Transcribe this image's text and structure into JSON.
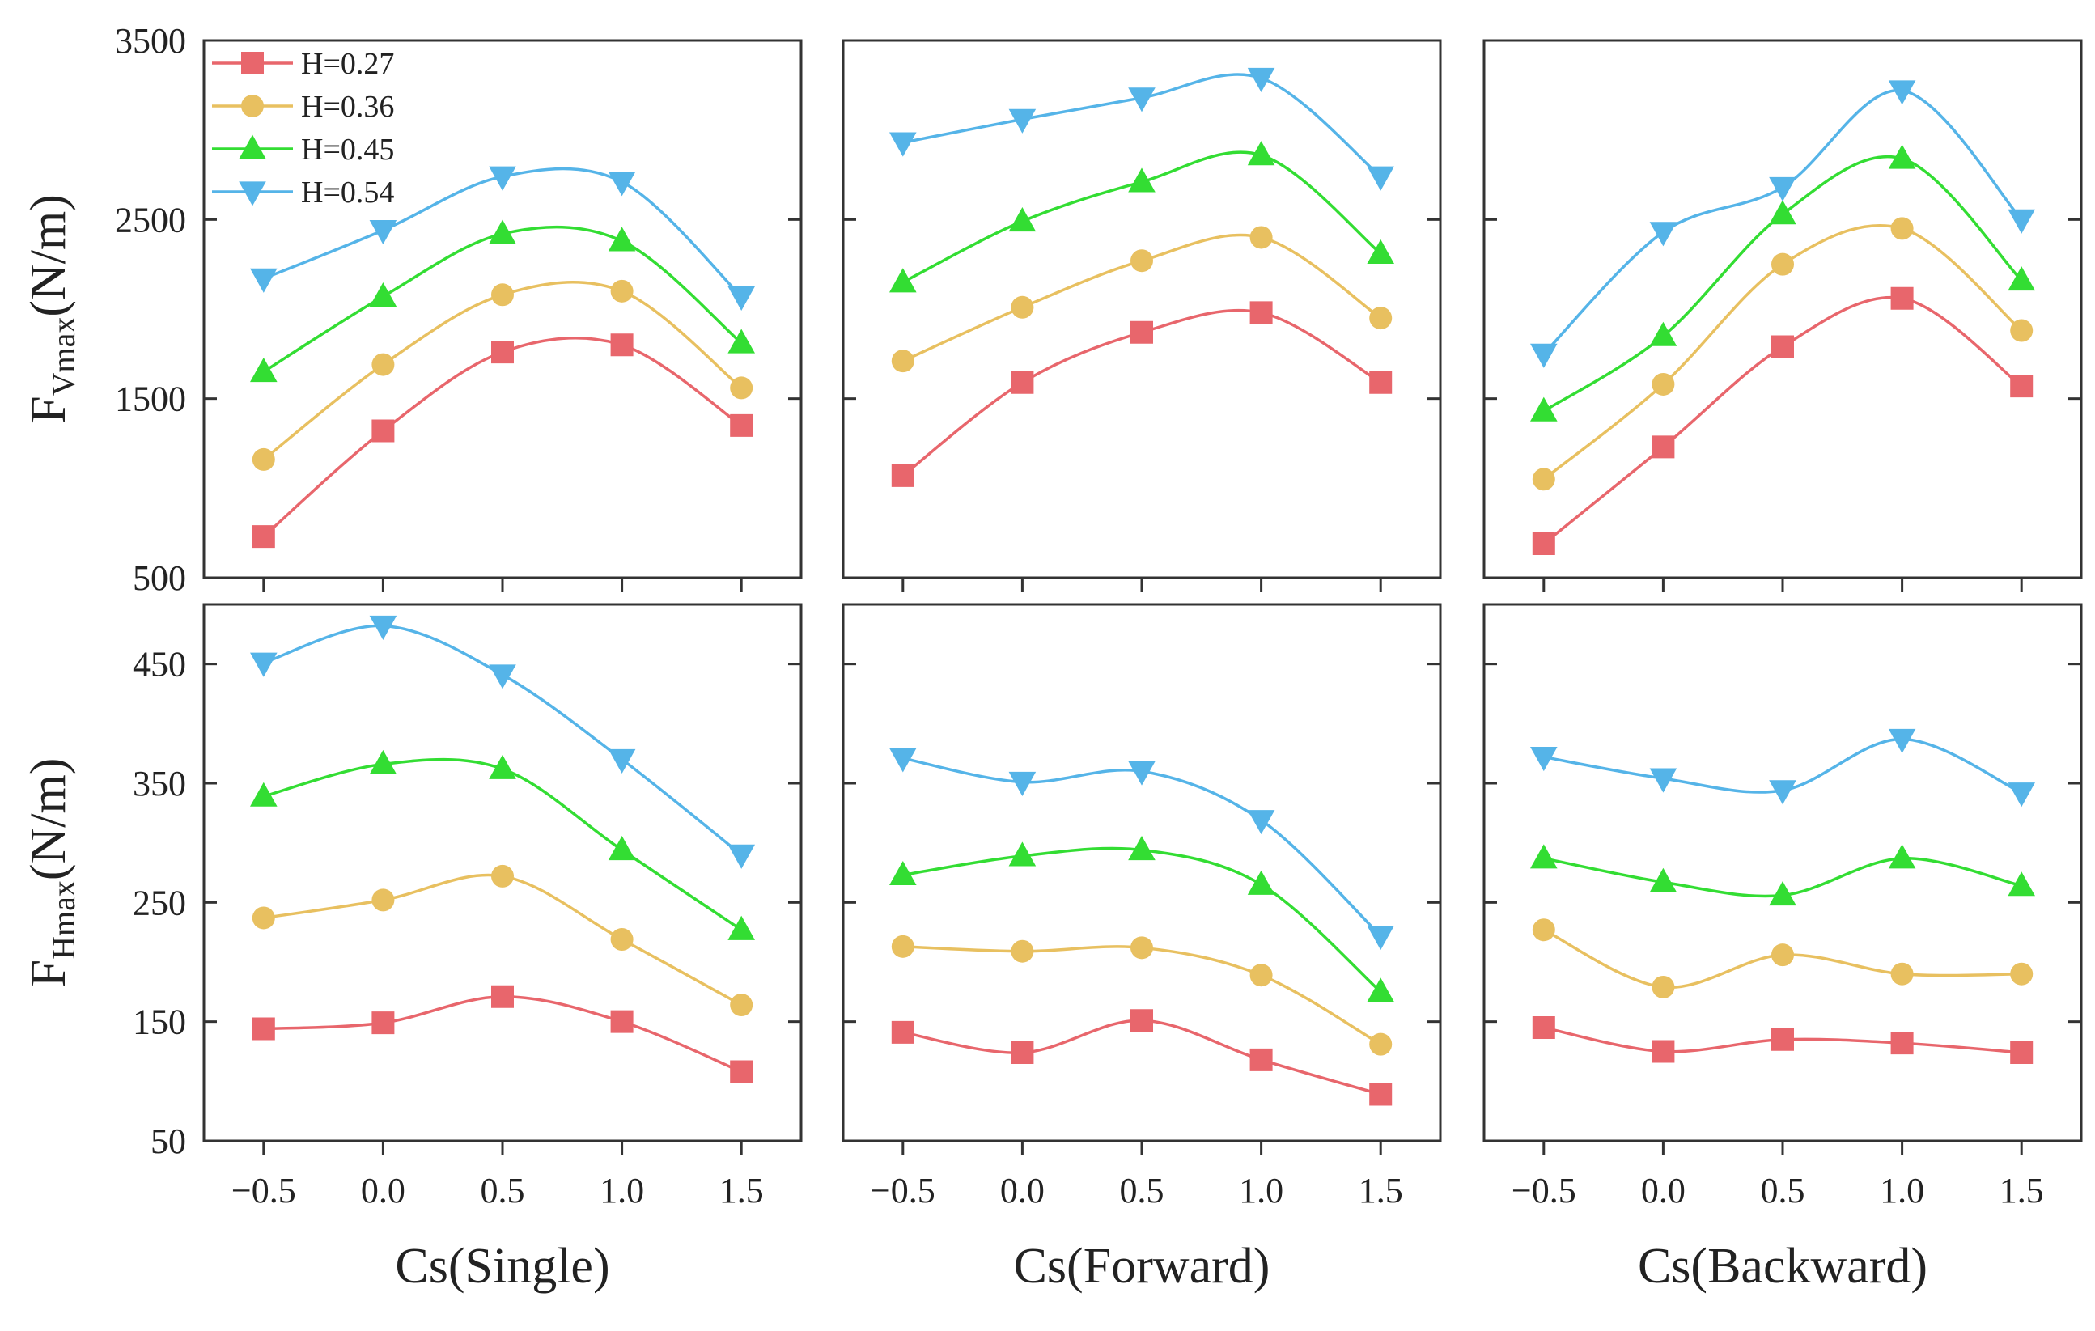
{
  "chart_data": {
    "type": "line",
    "x": [
      -0.5,
      0.0,
      0.5,
      1.0,
      1.5
    ],
    "x_tick_labels": [
      "−0.5",
      "0.0",
      "0.5",
      "1.0",
      "1.5"
    ],
    "x_range": [
      -0.75,
      1.75
    ],
    "series_styles": [
      {
        "name": "H=0.27",
        "color": "#e8666c",
        "marker": "square"
      },
      {
        "name": "H=0.36",
        "color": "#e8c060",
        "marker": "circle"
      },
      {
        "name": "H=0.45",
        "color": "#33dd33",
        "marker": "triangle-up"
      },
      {
        "name": "H=0.54",
        "color": "#55b4e8",
        "marker": "triangle-down"
      }
    ],
    "rows": [
      {
        "ylabel_main": "F",
        "ylabel_sub": "Vmax",
        "ylabel_unit": "(N/m)",
        "ylim": [
          500,
          3500
        ],
        "yticks": [
          500,
          1500,
          2500,
          3500
        ],
        "ytick_labels": [
          "500",
          "1500",
          "2500",
          "3500"
        ]
      },
      {
        "ylabel_main": "F",
        "ylabel_sub": "Hmax",
        "ylabel_unit": "(N/m)",
        "ylim": [
          50,
          500
        ],
        "yticks": [
          50,
          150,
          250,
          350,
          450
        ],
        "ytick_labels": [
          "50",
          "150",
          "250",
          "350",
          "450"
        ]
      }
    ],
    "columns": [
      {
        "xlabel": "Cs(Single)"
      },
      {
        "xlabel": "Cs(Forward)"
      },
      {
        "xlabel": "Cs(Backward)"
      }
    ],
    "panels": [
      {
        "row": 0,
        "col": 0,
        "series": [
          {
            "name": "H=0.27",
            "values": [
              730,
              1320,
              1760,
              1800,
              1350
            ]
          },
          {
            "name": "H=0.36",
            "values": [
              1160,
              1690,
              2080,
              2100,
              1560
            ]
          },
          {
            "name": "H=0.45",
            "values": [
              1650,
              2070,
              2420,
              2380,
              1810
            ]
          },
          {
            "name": "H=0.54",
            "values": [
              2170,
              2440,
              2740,
              2710,
              2070
            ]
          }
        ]
      },
      {
        "row": 0,
        "col": 1,
        "series": [
          {
            "name": "H=0.27",
            "values": [
              1070,
              1590,
              1870,
              1980,
              1590
            ]
          },
          {
            "name": "H=0.36",
            "values": [
              1710,
              2010,
              2270,
              2400,
              1950
            ]
          },
          {
            "name": "H=0.45",
            "values": [
              2150,
              2490,
              2710,
              2860,
              2310
            ]
          },
          {
            "name": "H=0.54",
            "values": [
              2930,
              3060,
              3180,
              3290,
              2740
            ]
          }
        ]
      },
      {
        "row": 0,
        "col": 2,
        "series": [
          {
            "name": "H=0.27",
            "values": [
              690,
              1230,
              1790,
              2060,
              1570
            ]
          },
          {
            "name": "H=0.36",
            "values": [
              1050,
              1580,
              2250,
              2450,
              1880
            ]
          },
          {
            "name": "H=0.45",
            "values": [
              1430,
              1850,
              2530,
              2840,
              2160
            ]
          },
          {
            "name": "H=0.54",
            "values": [
              1750,
              2430,
              2680,
              3220,
              2500
            ]
          }
        ]
      },
      {
        "row": 1,
        "col": 0,
        "series": [
          {
            "name": "H=0.27",
            "values": [
              144,
              149,
              171,
              150,
              108
            ]
          },
          {
            "name": "H=0.36",
            "values": [
              237,
              252,
              272,
              219,
              164
            ]
          },
          {
            "name": "H=0.45",
            "values": [
              339,
              366,
              362,
              294,
              227
            ]
          },
          {
            "name": "H=0.54",
            "values": [
              451,
              482,
              441,
              370,
              290
            ]
          }
        ]
      },
      {
        "row": 1,
        "col": 1,
        "series": [
          {
            "name": "H=0.27",
            "values": [
              141,
              124,
              151,
              118,
              89
            ]
          },
          {
            "name": "H=0.36",
            "values": [
              213,
              209,
              212,
              189,
              131
            ]
          },
          {
            "name": "H=0.45",
            "values": [
              273,
              289,
              294,
              265,
              175
            ]
          },
          {
            "name": "H=0.54",
            "values": [
              371,
              351,
              360,
              319,
              222
            ]
          }
        ]
      },
      {
        "row": 1,
        "col": 2,
        "series": [
          {
            "name": "H=0.27",
            "values": [
              145,
              125,
              135,
              132,
              124
            ]
          },
          {
            "name": "H=0.36",
            "values": [
              227,
              179,
              206,
              190,
              190
            ]
          },
          {
            "name": "H=0.45",
            "values": [
              287,
              267,
              256,
              287,
              264
            ]
          },
          {
            "name": "H=0.54",
            "values": [
              372,
              354,
              344,
              387,
              342
            ]
          }
        ]
      }
    ],
    "legend": {
      "placement": "top-left",
      "panel": 0,
      "entries": [
        "H=0.27",
        "H=0.36",
        "H=0.45",
        "H=0.54"
      ]
    },
    "grid": false
  }
}
